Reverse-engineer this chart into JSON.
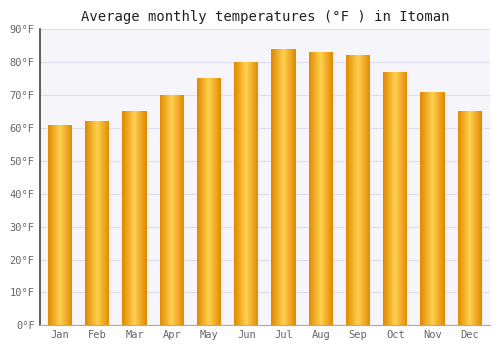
{
  "title": "Average monthly temperatures (°F ) in Itoman",
  "months": [
    "Jan",
    "Feb",
    "Mar",
    "Apr",
    "May",
    "Jun",
    "Jul",
    "Aug",
    "Sep",
    "Oct",
    "Nov",
    "Dec"
  ],
  "values": [
    61,
    62,
    65,
    70,
    75,
    80,
    84,
    83,
    82,
    77,
    71,
    65
  ],
  "bar_color_edge": "#E08000",
  "bar_color_center": "#FFD040",
  "bar_color_mid": "#FFA010",
  "background_color": "#FFFFFF",
  "plot_bg_color": "#F5F5FA",
  "ylim": [
    0,
    90
  ],
  "yticks": [
    0,
    10,
    20,
    30,
    40,
    50,
    60,
    70,
    80,
    90
  ],
  "ytick_labels": [
    "0°F",
    "10°F",
    "20°F",
    "30°F",
    "40°F",
    "50°F",
    "60°F",
    "70°F",
    "80°F",
    "90°F"
  ],
  "title_fontsize": 10,
  "tick_fontsize": 7.5,
  "grid_color": "#DDDDEE",
  "font_family": "monospace",
  "bar_width": 0.65
}
